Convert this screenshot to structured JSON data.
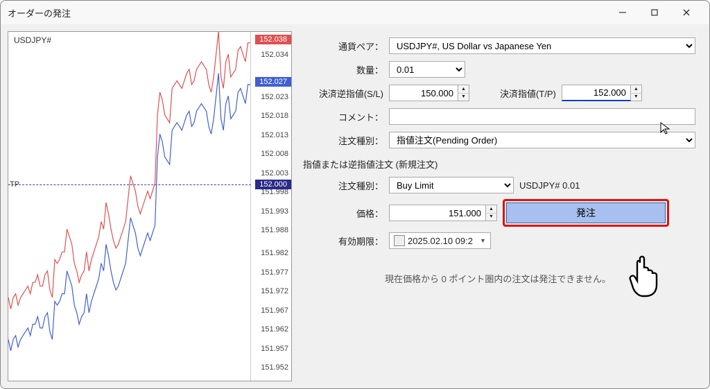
{
  "window": {
    "title": "オーダーの発注"
  },
  "chart": {
    "symbol": "USDJPY#",
    "ask": 152.038,
    "bid": 152.027,
    "tp_price": 152.0,
    "tp_label": "TP",
    "y_min": 151.95,
    "y_max": 152.04,
    "ticks": [
      152.038,
      152.034,
      152.027,
      152.023,
      152.018,
      152.013,
      152.008,
      152.003,
      152.0,
      151.998,
      151.993,
      151.988,
      151.982,
      151.977,
      151.972,
      151.967,
      151.962,
      151.957,
      151.952
    ],
    "ask_color": "#e05050",
    "bid_color": "#4060d0",
    "tp_color": "#2a2a8a",
    "line_width": 1.2,
    "bid_series": [
      151.96,
      151.957,
      151.96,
      151.961,
      151.958,
      151.96,
      151.961,
      151.962,
      151.963,
      151.961,
      151.964,
      151.964,
      151.966,
      151.963,
      151.963,
      151.966,
      151.967,
      151.962,
      151.96,
      151.97,
      151.969,
      151.97,
      151.972,
      151.972,
      151.978,
      151.976,
      151.974,
      151.969,
      151.967,
      151.964,
      151.966,
      151.967,
      151.972,
      151.967,
      151.97,
      151.972,
      151.974,
      151.976,
      151.98,
      151.978,
      151.985,
      151.982,
      151.978,
      151.975,
      151.973,
      151.974,
      151.976,
      151.978,
      151.98,
      151.986,
      151.992,
      151.99,
      151.988,
      151.984,
      151.982,
      151.984,
      151.986,
      151.988,
      151.986,
      151.988,
      151.99,
      152.008,
      152.014,
      152.012,
      152.008,
      152.007,
      152.006,
      152.015,
      152.016,
      152.017,
      152.016,
      152.015,
      152.017,
      152.019,
      152.02,
      152.016,
      152.017,
      152.02,
      152.021,
      152.022,
      152.021,
      152.02,
      152.016,
      152.014,
      152.018,
      152.024,
      152.03,
      152.018,
      152.015,
      152.022,
      152.024,
      152.018,
      152.019,
      152.02,
      152.025,
      152.026,
      152.024,
      152.022,
      152.027,
      152.027
    ],
    "ask_offset": 0.011
  },
  "form": {
    "pair_label": "通貨ペア：",
    "pair_value": "USDJPY#, US Dollar vs Japanese Yen",
    "qty_label": "数量：",
    "qty_value": "0.01",
    "sl_label": "決済逆指値(S/L)",
    "sl_value": "150.000",
    "tp_label": "決済指値(T/P)",
    "tp_value": "152.000",
    "comment_label": "コメント：",
    "comment_value": "",
    "ordertype_label": "注文種別：",
    "ordertype_value": "指値注文(Pending Order)",
    "section_label": "指値または逆指値注文 (新規注文)",
    "subtype_label": "注文種別：",
    "subtype_value": "Buy Limit",
    "subtype_right": "USDJPY# 0.01",
    "price_label": "価格：",
    "price_value": "151.000",
    "submit_label": "発注",
    "expiry_label": "有効期限：",
    "expiry_value": "2025.02.10 09:2",
    "status_msg": "現在価格から 0 ポイント圏内の注文は発注できません。"
  },
  "colors": {
    "highlight": "#e01010",
    "submit_bg": "#a8c0f0",
    "submit_border": "#4060a0"
  }
}
